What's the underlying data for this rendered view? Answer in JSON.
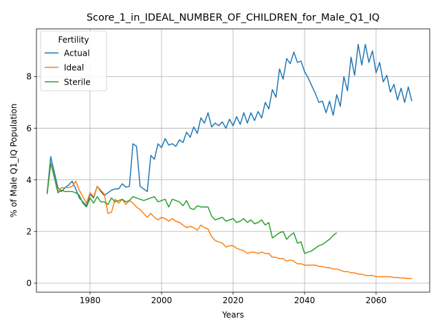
{
  "chart_data": {
    "type": "line",
    "title": "Score_1_in_IDEAL_NUMBER_OF_CHILDREN_for_Male_Q1_IQ",
    "xlabel": "Years",
    "ylabel": "% of Male Q1_IQ Population",
    "xlim": [
      1965,
      2075
    ],
    "ylim": [
      -0.35,
      9.85
    ],
    "xticks": [
      1980,
      2000,
      2020,
      2040,
      2060
    ],
    "yticks": [
      0,
      2,
      4,
      6,
      8
    ],
    "grid": true,
    "legend": {
      "title": "Fertility",
      "placement": "top-left"
    },
    "series": [
      {
        "name": "Actual",
        "color": "#1f77b4",
        "x": [
          1968,
          1969,
          1970,
          1971,
          1972,
          1973,
          1974,
          1975,
          1976,
          1977,
          1978,
          1979,
          1980,
          1981,
          1982,
          1983,
          1984,
          1985,
          1986,
          1987,
          1988,
          1989,
          1990,
          1991,
          1992,
          1993,
          1994,
          1995,
          1996,
          1997,
          1998,
          1999,
          2000,
          2001,
          2002,
          2003,
          2004,
          2005,
          2006,
          2007,
          2008,
          2009,
          2010,
          2011,
          2012,
          2013,
          2014,
          2015,
          2016,
          2017,
          2018,
          2019,
          2020,
          2021,
          2022,
          2023,
          2024,
          2025,
          2026,
          2027,
          2028,
          2029,
          2030,
          2031,
          2032,
          2033,
          2034,
          2035,
          2036,
          2037,
          2038,
          2039,
          2040,
          2041,
          2042,
          2043,
          2044,
          2045,
          2046,
          2047,
          2048,
          2049,
          2050,
          2051,
          2052,
          2053,
          2054,
          2055,
          2056,
          2057,
          2058,
          2059,
          2060,
          2061,
          2062,
          2063,
          2064,
          2065,
          2066,
          2067,
          2068,
          2069,
          2070
        ],
        "values": [
          3.5,
          4.9,
          4.3,
          3.7,
          3.55,
          3.7,
          3.8,
          3.95,
          3.65,
          3.3,
          3.15,
          3.0,
          3.45,
          3.3,
          3.75,
          3.55,
          3.4,
          3.5,
          3.6,
          3.65,
          3.65,
          3.85,
          3.72,
          3.75,
          5.4,
          5.3,
          3.75,
          3.65,
          3.55,
          4.95,
          4.8,
          5.4,
          5.25,
          5.6,
          5.35,
          5.4,
          5.3,
          5.55,
          5.45,
          5.85,
          5.65,
          6.05,
          5.8,
          6.4,
          6.2,
          6.6,
          6.05,
          6.2,
          6.1,
          6.25,
          6.0,
          6.35,
          6.1,
          6.45,
          6.15,
          6.6,
          6.2,
          6.6,
          6.3,
          6.65,
          6.4,
          7.0,
          6.75,
          7.5,
          7.2,
          8.3,
          7.9,
          8.7,
          8.5,
          8.95,
          8.55,
          8.6,
          8.2,
          7.95,
          7.65,
          7.35,
          7.0,
          7.05,
          6.6,
          7.05,
          6.5,
          7.3,
          6.85,
          8.0,
          7.45,
          8.75,
          8.05,
          9.25,
          8.45,
          9.25,
          8.55,
          9.0,
          8.15,
          8.55,
          7.8,
          8.05,
          7.4,
          7.7,
          7.1,
          7.55,
          7.0,
          7.6,
          7.05
        ]
      },
      {
        "name": "Ideal",
        "color": "#ff7f0e",
        "x": [
          1968,
          1969,
          1970,
          1971,
          1972,
          1973,
          1974,
          1975,
          1976,
          1977,
          1978,
          1979,
          1980,
          1981,
          1982,
          1983,
          1984,
          1985,
          1986,
          1987,
          1988,
          1989,
          1990,
          1991,
          1992,
          1993,
          1994,
          1995,
          1996,
          1997,
          1998,
          1999,
          2000,
          2001,
          2002,
          2003,
          2004,
          2005,
          2006,
          2007,
          2008,
          2009,
          2010,
          2011,
          2012,
          2013,
          2014,
          2015,
          2016,
          2017,
          2018,
          2019,
          2020,
          2021,
          2022,
          2023,
          2024,
          2025,
          2026,
          2027,
          2028,
          2029,
          2030,
          2031,
          2032,
          2033,
          2034,
          2035,
          2036,
          2037,
          2038,
          2039,
          2040,
          2041,
          2042,
          2043,
          2044,
          2045,
          2046,
          2047,
          2048,
          2049,
          2050,
          2051,
          2052,
          2053,
          2054,
          2055,
          2056,
          2057,
          2058,
          2059,
          2060,
          2061,
          2062,
          2063,
          2064,
          2065,
          2066,
          2067,
          2068,
          2069,
          2070
        ],
        "values": [
          3.5,
          4.65,
          4.15,
          3.55,
          3.7,
          3.7,
          3.7,
          3.75,
          3.95,
          3.6,
          3.35,
          3.1,
          3.5,
          3.35,
          3.75,
          3.6,
          3.45,
          2.7,
          2.75,
          3.25,
          3.1,
          3.25,
          3.05,
          3.2,
          3.1,
          2.95,
          2.85,
          2.7,
          2.55,
          2.7,
          2.55,
          2.45,
          2.55,
          2.5,
          2.4,
          2.5,
          2.4,
          2.35,
          2.25,
          2.15,
          2.2,
          2.15,
          2.05,
          2.25,
          2.15,
          2.1,
          1.8,
          1.65,
          1.6,
          1.55,
          1.4,
          1.45,
          1.45,
          1.35,
          1.3,
          1.25,
          1.15,
          1.2,
          1.2,
          1.15,
          1.2,
          1.15,
          1.15,
          1.0,
          1.0,
          0.95,
          0.95,
          0.85,
          0.9,
          0.85,
          0.75,
          0.75,
          0.7,
          0.7,
          0.7,
          0.7,
          0.65,
          0.65,
          0.6,
          0.6,
          0.55,
          0.55,
          0.5,
          0.45,
          0.45,
          0.4,
          0.4,
          0.35,
          0.35,
          0.3,
          0.3,
          0.3,
          0.25,
          0.25,
          0.25,
          0.25,
          0.25,
          0.22,
          0.22,
          0.2,
          0.2,
          0.18,
          0.18
        ]
      },
      {
        "name": "Sterile",
        "color": "#2ca02c",
        "x": [
          1968,
          1969,
          1970,
          1971,
          1972,
          1973,
          1974,
          1975,
          1976,
          1977,
          1978,
          1979,
          1980,
          1981,
          1982,
          1983,
          1984,
          1985,
          1986,
          1987,
          1988,
          1989,
          1990,
          1991,
          1992,
          1993,
          1994,
          1995,
          1996,
          1997,
          1998,
          1999,
          2000,
          2001,
          2002,
          2003,
          2004,
          2005,
          2006,
          2007,
          2008,
          2009,
          2010,
          2011,
          2012,
          2013,
          2014,
          2015,
          2016,
          2017,
          2018,
          2019,
          2020,
          2021,
          2022,
          2023,
          2024,
          2025,
          2026,
          2027,
          2028,
          2029,
          2030,
          2031,
          2032,
          2033,
          2034,
          2035,
          2036,
          2037,
          2038,
          2039,
          2040,
          2041,
          2042,
          2043,
          2044,
          2045,
          2046,
          2047,
          2048,
          2049
        ],
        "values": [
          3.45,
          4.65,
          4.1,
          3.5,
          3.6,
          3.55,
          3.55,
          3.55,
          3.5,
          3.4,
          3.1,
          2.95,
          3.3,
          3.1,
          3.35,
          3.15,
          3.15,
          3.05,
          3.3,
          3.15,
          3.2,
          3.25,
          3.15,
          3.2,
          3.35,
          3.3,
          3.25,
          3.2,
          3.25,
          3.3,
          3.35,
          3.15,
          3.2,
          3.25,
          2.95,
          3.25,
          3.2,
          3.15,
          3.0,
          3.2,
          2.9,
          2.85,
          3.0,
          2.95,
          2.95,
          2.95,
          2.6,
          2.45,
          2.5,
          2.55,
          2.4,
          2.45,
          2.5,
          2.35,
          2.4,
          2.5,
          2.35,
          2.45,
          2.3,
          2.35,
          2.45,
          2.25,
          2.35,
          1.75,
          1.85,
          1.95,
          2.0,
          1.7,
          1.85,
          1.95,
          1.55,
          1.6,
          1.15,
          1.2,
          1.25,
          1.35,
          1.45,
          1.5,
          1.6,
          1.7,
          1.85,
          1.95
        ]
      }
    ]
  }
}
